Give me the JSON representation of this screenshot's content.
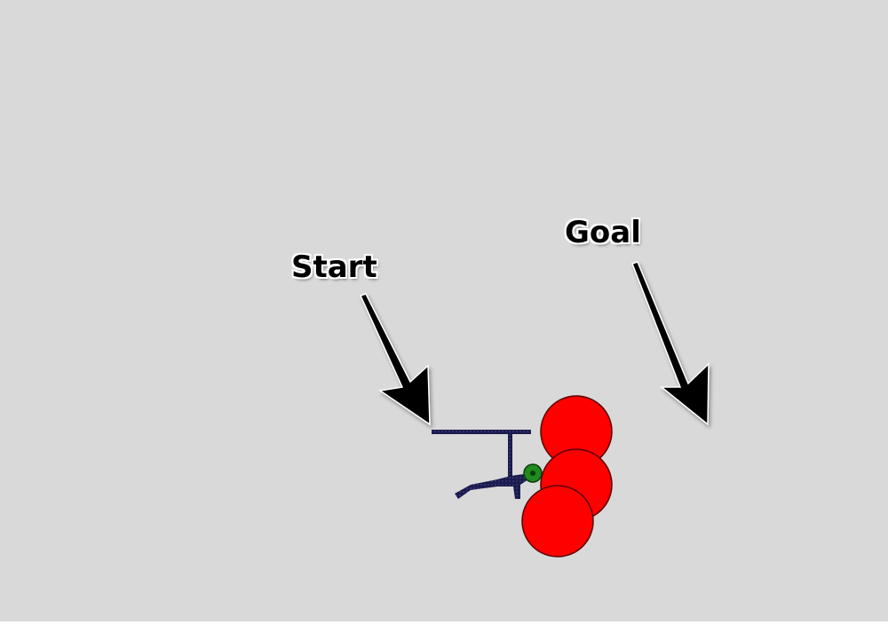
{
  "labels": {
    "start": "Start",
    "goal": "Goal"
  },
  "colors": {
    "background": "#d9d9d9",
    "obstacle_fill": "#ff0000",
    "obstacle_stroke": "#5a0000",
    "robot_body": "#1a1a4d",
    "end_effector_fill": "#1f8a1f",
    "end_effector_stroke": "#0b3d0b",
    "arrow": "#000000"
  }
}
